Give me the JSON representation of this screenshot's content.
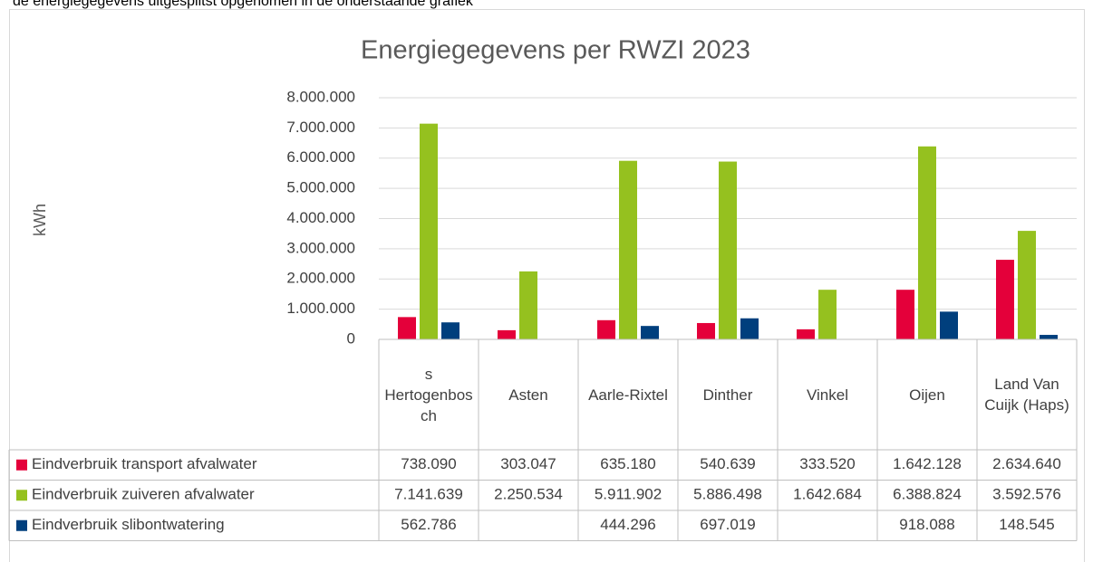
{
  "header_text": "de energiegegevens uitgesplitst opgenomen in de onderstaande grafiek",
  "chart_data": {
    "type": "bar",
    "title": "Energiegegevens per RWZI 2023",
    "y_label": "kWh",
    "categories": [
      "s Hertogenbosch",
      "Asten",
      "Aarle-Rixtel",
      "Dinther",
      "Vinkel",
      "Oijen",
      "Land Van Cuijk (Haps)"
    ],
    "series": [
      {
        "name": "Eindverbruik transport afvalwater",
        "color": "#e4003a",
        "values": [
          738090,
          303047,
          635180,
          540639,
          333520,
          1642128,
          2634640
        ],
        "value_labels": [
          "738.090",
          "303.047",
          "635.180",
          "540.639",
          "333.520",
          "1.642.128",
          "2.634.640"
        ]
      },
      {
        "name": "Eindverbruik zuiveren afvalwater",
        "color": "#95c11f",
        "values": [
          7141639,
          2250534,
          5911902,
          5886498,
          1642684,
          6388824,
          3592576
        ],
        "value_labels": [
          "7.141.639",
          "2.250.534",
          "5.911.902",
          "5.886.498",
          "1.642.684",
          "6.388.824",
          "3.592.576"
        ]
      },
      {
        "name": "Eindverbruik slibontwatering",
        "color": "#003f7d",
        "values": [
          562786,
          null,
          444296,
          697019,
          null,
          918088,
          148545
        ],
        "value_labels": [
          "562.786",
          null,
          "444.296",
          "697.019",
          null,
          "918.088",
          "148.545"
        ]
      }
    ],
    "ylim": [
      0,
      8000000
    ],
    "yticks": [
      0,
      {
        "value": 1000000,
        "label": "1.000.000"
      },
      {
        "value": 2000000,
        "label": "2.000.000"
      },
      {
        "value": 3000000,
        "label": "3.000.000"
      },
      {
        "value": 4000000,
        "label": "4.000.000"
      },
      {
        "value": 5000000,
        "label": "5.000.000"
      },
      {
        "value": 6000000,
        "label": "6.000.000"
      },
      {
        "value": 7000000,
        "label": "7.000.000"
      },
      {
        "value": 8000000,
        "label": "8.000.000"
      }
    ],
    "grid": true,
    "data_table": true
  }
}
